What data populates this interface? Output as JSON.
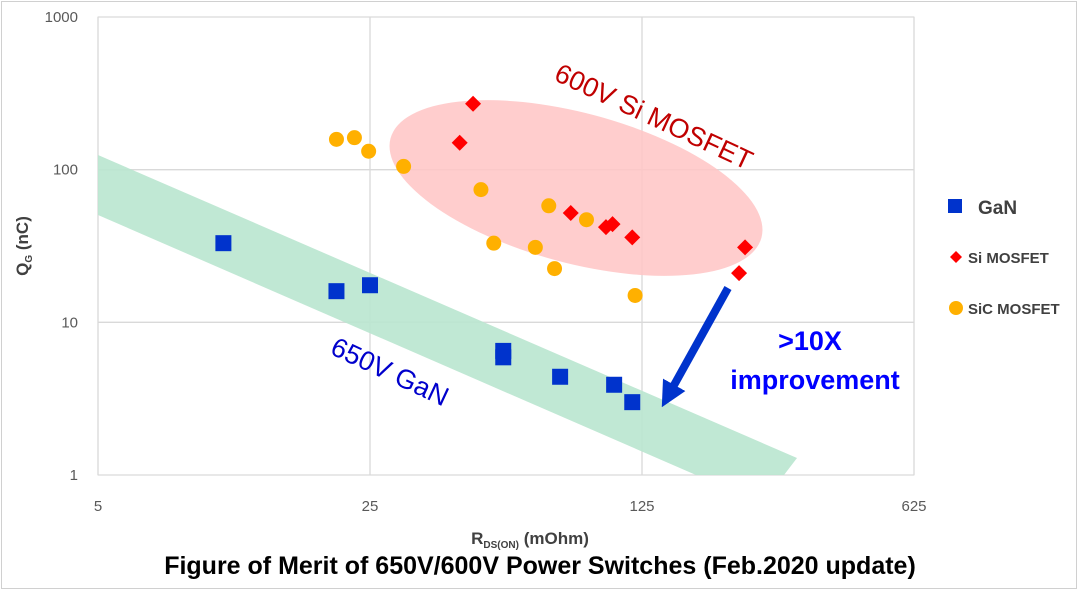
{
  "chart_data": {
    "type": "scatter",
    "title": "Figure of Merit of 650V/600V Power Switches (Feb.2020 update)",
    "xlabel": {
      "main": "R",
      "sub": "DS(ON)",
      "unit": " (mOhm)"
    },
    "ylabel": {
      "main": "Q",
      "sub": "G",
      "unit": " (nC)"
    },
    "x_scale": "log5",
    "y_scale": "log10",
    "xlim": [
      5,
      625
    ],
    "ylim": [
      1,
      1000
    ],
    "x_ticks": [
      "5",
      "25",
      "125",
      "625"
    ],
    "y_ticks": [
      "1",
      "10",
      "100",
      "1000"
    ],
    "grid": true,
    "legend_position": "right",
    "series": [
      {
        "name": "GaN",
        "marker": "square",
        "color": "#0033cc",
        "points": [
          {
            "x": 10.5,
            "y": 33
          },
          {
            "x": 20.5,
            "y": 16
          },
          {
            "x": 25,
            "y": 17.5
          },
          {
            "x": 55,
            "y": 6.5
          },
          {
            "x": 55,
            "y": 5.9
          },
          {
            "x": 77,
            "y": 4.4
          },
          {
            "x": 106,
            "y": 3.9
          },
          {
            "x": 118,
            "y": 3.0
          }
        ]
      },
      {
        "name": "Si MOSFET",
        "marker": "diamond",
        "color": "#ff0000",
        "points": [
          {
            "x": 46,
            "y": 270
          },
          {
            "x": 42.5,
            "y": 150
          },
          {
            "x": 82,
            "y": 52
          },
          {
            "x": 101,
            "y": 42
          },
          {
            "x": 105,
            "y": 44
          },
          {
            "x": 118,
            "y": 36
          },
          {
            "x": 230,
            "y": 31
          },
          {
            "x": 222,
            "y": 21
          }
        ]
      },
      {
        "name": "SiC MOSFET",
        "marker": "circle",
        "color": "#ffb000",
        "points": [
          {
            "x": 20.5,
            "y": 158
          },
          {
            "x": 22.8,
            "y": 162
          },
          {
            "x": 24.8,
            "y": 132
          },
          {
            "x": 30.5,
            "y": 105
          },
          {
            "x": 48.2,
            "y": 74
          },
          {
            "x": 52,
            "y": 33
          },
          {
            "x": 72,
            "y": 58
          },
          {
            "x": 66.5,
            "y": 31
          },
          {
            "x": 74.5,
            "y": 22.5
          },
          {
            "x": 90,
            "y": 47
          },
          {
            "x": 120,
            "y": 15
          }
        ]
      }
    ],
    "annotations": {
      "si_region_label": "600V Si MOSFET",
      "gan_region_label": "650V GaN",
      "improvement_line1": ">10X",
      "improvement_line2": "improvement"
    }
  },
  "colors": {
    "gan_band": "#b9e6cf",
    "si_ellipse": "#ffc4c4",
    "si_label": "#c00000",
    "gan_label": "#0000cc",
    "arrow": "#0033cc",
    "grid": "#d9d9d9"
  }
}
